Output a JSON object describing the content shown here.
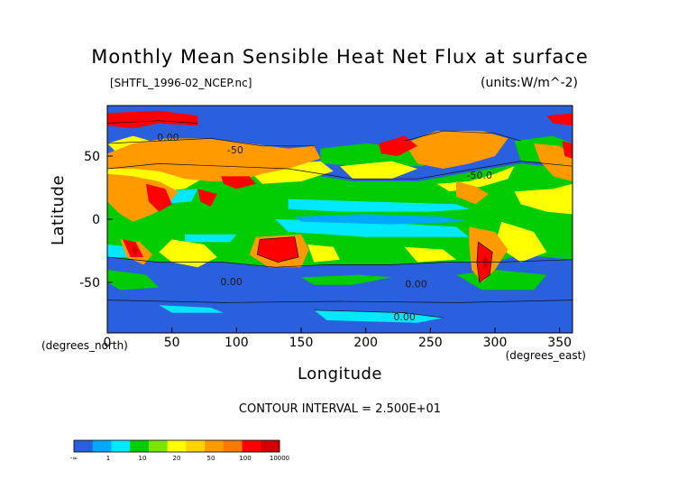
{
  "chart_data": {
    "type": "heatmap",
    "title": "Monthly Mean Sensible Heat Net Flux at surface",
    "source_file": "[SHTFL_1996-02_NCEP.nc]",
    "units": "(units:W/m^-2)",
    "xlabel": "Longitude",
    "ylabel": "Latitude",
    "x_unit_label": "(degrees_east)",
    "y_unit_label": "(degrees_north)",
    "xlim": [
      0,
      360
    ],
    "ylim": [
      -90,
      90
    ],
    "x_ticks": [
      0,
      50,
      100,
      150,
      200,
      250,
      300,
      350
    ],
    "y_ticks": [
      -50,
      0,
      50
    ],
    "contour_interval_text": "CONTOUR INTERVAL = 2.500E+01",
    "contour_labels": [
      {
        "text": "0.00",
        "lon": 47,
        "lat": 62
      },
      {
        "text": "-50",
        "lon": 99,
        "lat": 52
      },
      {
        "text": "0.00",
        "lon": 96,
        "lat": -52
      },
      {
        "text": "0.00",
        "lon": 239,
        "lat": -54
      },
      {
        "text": "0.00",
        "lon": 230,
        "lat": -80
      },
      {
        "text": "-50.0",
        "lon": 288,
        "lat": 32
      }
    ],
    "color_scale": {
      "colors": [
        "#2a60de",
        "#00a8ff",
        "#00e8ff",
        "#00cc00",
        "#78e600",
        "#ffff00",
        "#ffd200",
        "#ff9a00",
        "#f97a00",
        "#ff0000",
        "#d00000"
      ],
      "tick_labels": [
        "-∞",
        "1",
        "10",
        "20",
        "50",
        "100",
        "10000"
      ]
    }
  }
}
